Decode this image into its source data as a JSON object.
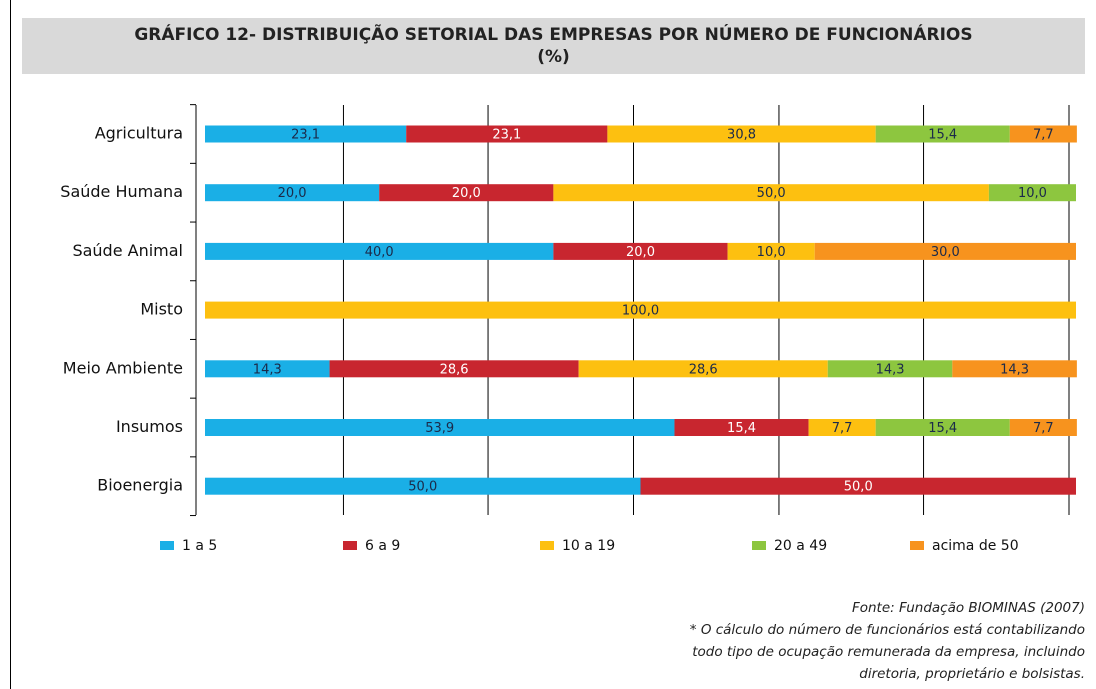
{
  "chart_data": {
    "type": "stacked-bar-horizontal",
    "title": "GRÁFICO 12- DISTRIBUIÇÃO SETORIAL DAS EMPRESAS POR NÚMERO DE FUNCIONÁRIOS (%)",
    "categories": [
      "Agricultura",
      "Saúde Humana",
      "Saúde Animal",
      "Misto",
      "Meio Ambiente",
      "Insumos",
      "Bioenergia"
    ],
    "series": [
      {
        "name": "1 a 5",
        "color": "#1aafe6",
        "values": [
          23.1,
          20.0,
          40.0,
          null,
          14.3,
          53.9,
          50.0
        ],
        "value_labels": [
          "23,1",
          "20,0",
          "40,0",
          null,
          "14,3",
          "53,9",
          "50,0"
        ]
      },
      {
        "name": "6 a 9",
        "color": "#c8262f",
        "values": [
          23.1,
          20.0,
          20.0,
          null,
          28.6,
          15.4,
          50.0
        ],
        "value_labels": [
          "23,1",
          "20,0",
          "20,0",
          null,
          "28,6",
          "15,4",
          "50,0"
        ]
      },
      {
        "name": "10 a 19",
        "color": "#fdc010",
        "values": [
          30.8,
          50.0,
          10.0,
          100.0,
          28.6,
          7.7,
          null
        ],
        "value_labels": [
          "30,8",
          "50,0",
          "10,0",
          "100,0",
          "28,6",
          "7,7",
          null
        ]
      },
      {
        "name": "20 a 49",
        "color": "#8dc63f",
        "values": [
          15.4,
          10.0,
          null,
          null,
          14.3,
          15.4,
          null
        ],
        "value_labels": [
          "15,4",
          "10,0",
          null,
          null,
          "14,3",
          "15,4",
          null
        ]
      },
      {
        "name": "acima de 50",
        "color": "#f7931e",
        "values": [
          7.7,
          null,
          30.0,
          null,
          14.3,
          7.7,
          null
        ],
        "value_labels": [
          "7,7",
          null,
          "30,0",
          null,
          "14,3",
          "7,7",
          null
        ]
      }
    ],
    "xlim": [
      0,
      100
    ],
    "xticks": [
      16.7,
      33.3,
      50,
      66.7,
      83.3,
      100
    ],
    "grid": true,
    "source": "Fonte: Fundação BIOMINAS (2007)",
    "notes": [
      "* O cálculo do número de funcionários está contabilizando",
      "todo tipo de ocupação remunerada da empresa, incluindo",
      "diretoria, proprietário e bolsistas."
    ]
  }
}
